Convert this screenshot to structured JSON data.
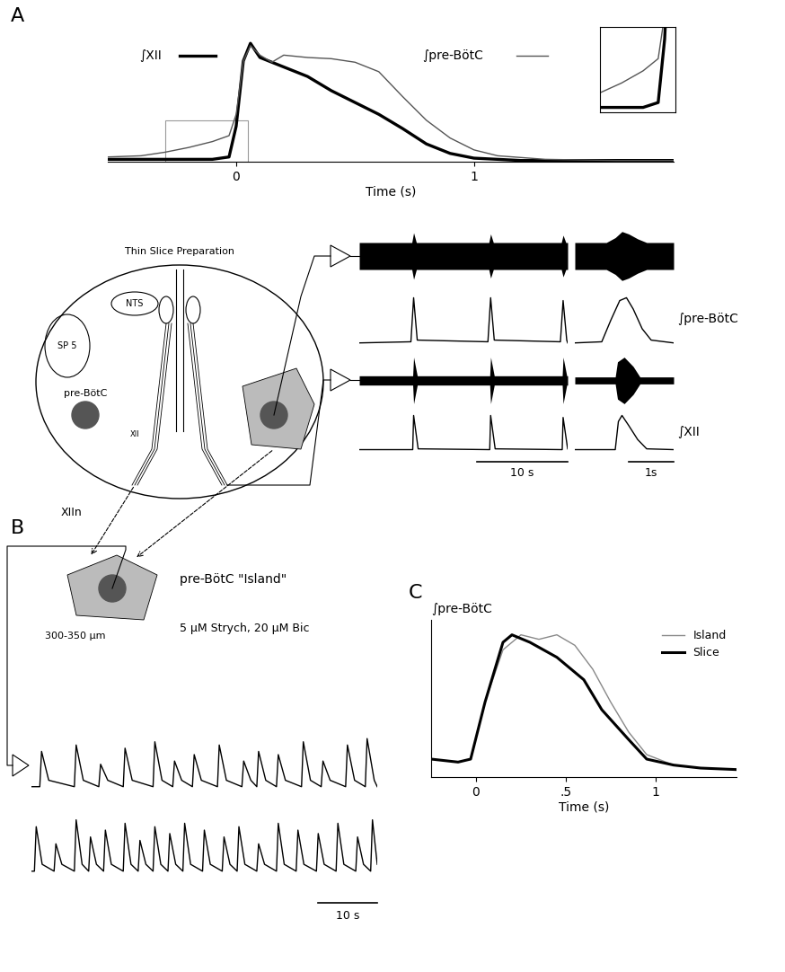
{
  "panels": [
    "A",
    "B",
    "C"
  ],
  "diagram": {
    "title": "Thin Slice Preparation",
    "labels": [
      "NTS",
      "SP 5",
      "pre-BötC",
      "XII",
      "XIIn"
    ],
    "island": {
      "title": "pre-BötC \"Island\"",
      "thickness": "300-350 µm",
      "drugs": "5 µM Strych, 20 µM Bic"
    }
  },
  "chart_data": [
    {
      "type": "line",
      "xlabel": "Time (s)",
      "xlim": [
        -0.54,
        1.84
      ],
      "xticks": [
        0,
        1
      ],
      "ylim": [
        0,
        1.1
      ],
      "tick_labels": "x",
      "series": [
        {
          "name": "∫XII",
          "color": "#000000",
          "line_style": "solid",
          "x": [
            -0.54,
            -0.3,
            -0.1,
            -0.03,
            0.0,
            0.03,
            0.06,
            0.1,
            0.2,
            0.3,
            0.4,
            0.5,
            0.6,
            0.7,
            0.8,
            0.9,
            1.0,
            1.2,
            1.5,
            1.84
          ],
          "values": [
            0.02,
            0.02,
            0.02,
            0.04,
            0.3,
            0.85,
            1.0,
            0.88,
            0.8,
            0.72,
            0.6,
            0.5,
            0.4,
            0.28,
            0.15,
            0.07,
            0.03,
            0.01,
            0.01,
            0.01
          ]
        },
        {
          "name": "∫pre-BötC",
          "color": "#555555",
          "line_style": "solid",
          "x": [
            -0.54,
            -0.4,
            -0.3,
            -0.2,
            -0.1,
            -0.03,
            0.0,
            0.03,
            0.06,
            0.1,
            0.15,
            0.2,
            0.3,
            0.4,
            0.5,
            0.6,
            0.7,
            0.8,
            0.9,
            1.0,
            1.1,
            1.3,
            1.6,
            1.84
          ],
          "values": [
            0.04,
            0.05,
            0.08,
            0.12,
            0.17,
            0.22,
            0.4,
            0.85,
            0.98,
            0.9,
            0.84,
            0.9,
            0.88,
            0.87,
            0.84,
            0.76,
            0.55,
            0.35,
            0.2,
            0.1,
            0.05,
            0.02,
            0.01,
            0.01
          ]
        }
      ],
      "inset": {
        "xlim": [
          -0.3,
          0.05
        ],
        "ylim": [
          0,
          0.35
        ]
      }
    },
    {
      "type": "trace",
      "tick_labels": false,
      "windows": [
        {
          "xlim": [
            0,
            23
          ],
          "scale_bar": {
            "value": 10,
            "label": "10 s"
          }
        },
        {
          "xlim": [
            0,
            2.2
          ],
          "scale_bar": {
            "value": 1,
            "label": "1s"
          }
        }
      ],
      "series": [
        {
          "type": "raw",
          "color": "#000000",
          "ylim": [
            -1.1,
            1.1
          ],
          "windows": [
            {
              "x": [
                0,
                5.8,
                6.0,
                6.3,
                14.3,
                14.5,
                14.8,
                22.3,
                22.5,
                22.8,
                23
              ],
              "values": [
                0.55,
                0.55,
                0.95,
                0.55,
                0.55,
                0.9,
                0.55,
                0.55,
                0.85,
                0.55,
                0.55
              ]
            },
            {
              "x": [
                0,
                0.7,
                0.9,
                1.05,
                1.2,
                1.4,
                1.6,
                2.2
              ],
              "values": [
                0.55,
                0.55,
                0.75,
                1.0,
                0.9,
                0.7,
                0.55,
                0.55
              ]
            }
          ]
        },
        {
          "type": "integrated",
          "name": "∫pre-BötC",
          "color": "#000000",
          "ylim": [
            0,
            1.05
          ],
          "windows": [
            {
              "x": [
                0,
                5.7,
                6.0,
                6.4,
                14.2,
                14.5,
                14.9,
                22.2,
                22.5,
                22.9,
                23
              ],
              "values": [
                0.1,
                0.12,
                0.9,
                0.15,
                0.12,
                0.9,
                0.15,
                0.12,
                0.85,
                0.15,
                0.1
              ]
            },
            {
              "x": [
                0,
                0.6,
                0.8,
                1.0,
                1.15,
                1.3,
                1.5,
                1.7,
                2.2
              ],
              "values": [
                0.1,
                0.12,
                0.5,
                0.85,
                0.9,
                0.7,
                0.35,
                0.15,
                0.1
              ]
            }
          ]
        },
        {
          "type": "raw",
          "color": "#000000",
          "ylim": [
            -1.1,
            1.1
          ],
          "windows": [
            {
              "x": [
                0,
                5.9,
                6.0,
                6.4,
                14.4,
                14.5,
                14.9,
                22.4,
                22.5,
                22.9,
                23
              ],
              "values": [
                0.2,
                0.2,
                1.0,
                0.2,
                0.2,
                1.0,
                0.2,
                0.2,
                1.0,
                0.2,
                0.2
              ]
            },
            {
              "x": [
                0,
                0.9,
                0.95,
                1.1,
                1.3,
                1.45,
                2.2
              ],
              "values": [
                0.15,
                0.15,
                0.8,
                1.0,
                0.6,
                0.15,
                0.15
              ]
            }
          ]
        },
        {
          "type": "integrated",
          "name": "∫XII",
          "color": "#000000",
          "ylim": [
            0,
            1.05
          ],
          "windows": [
            {
              "x": [
                0,
                5.9,
                6.0,
                6.5,
                14.4,
                14.5,
                15.0,
                22.4,
                22.5,
                23
              ],
              "values": [
                0.1,
                0.1,
                0.95,
                0.12,
                0.1,
                0.95,
                0.12,
                0.1,
                0.9,
                0.12
              ]
            },
            {
              "x": [
                0,
                0.9,
                0.97,
                1.05,
                1.2,
                1.4,
                1.6,
                2.2
              ],
              "values": [
                0.1,
                0.1,
                0.8,
                0.95,
                0.7,
                0.35,
                0.12,
                0.1
              ]
            }
          ]
        }
      ]
    },
    {
      "type": "line",
      "tick_labels": false,
      "xlim": [
        0,
        58
      ],
      "ylim": [
        0,
        1.05
      ],
      "series": [
        {
          "color": "#000000",
          "line_style": "solid",
          "x": [
            0,
            1.4,
            1.7,
            2.9,
            7.2,
            7.5,
            8.7,
            11.3,
            11.6,
            12.8,
            15.4,
            15.7,
            16.9,
            20.4,
            20.7,
            21.9,
            23.7,
            24.0,
            25.2,
            27.0,
            27.3,
            28.5,
            31.2,
            31.5,
            32.7,
            35.3,
            35.6,
            36.8,
            37.8,
            38.1,
            39.3,
            41.1,
            41.4,
            42.6,
            45.3,
            45.6,
            46.8,
            48.6,
            48.9,
            50.1,
            52.7,
            53.0,
            54.2,
            56.0,
            56.3,
            57.5,
            58
          ],
          "values": [
            0.2,
            0.2,
            0.75,
            0.3,
            0.2,
            0.85,
            0.3,
            0.2,
            0.55,
            0.3,
            0.2,
            0.8,
            0.3,
            0.2,
            0.9,
            0.3,
            0.2,
            0.6,
            0.3,
            0.2,
            0.7,
            0.3,
            0.2,
            0.85,
            0.3,
            0.2,
            0.6,
            0.3,
            0.2,
            0.75,
            0.3,
            0.2,
            0.7,
            0.3,
            0.2,
            0.9,
            0.3,
            0.2,
            0.6,
            0.3,
            0.2,
            0.85,
            0.3,
            0.2,
            0.95,
            0.3,
            0.2
          ]
        }
      ]
    },
    {
      "type": "line",
      "tick_labels": false,
      "xlim": [
        0,
        58
      ],
      "ylim": [
        0,
        1.05
      ],
      "scale_bar": {
        "value": 10,
        "label": "10 s"
      },
      "series": [
        {
          "color": "#000000",
          "line_style": "solid",
          "x": [
            0,
            0.5,
            0.8,
            1.8,
            3.8,
            4.1,
            5.1,
            7.2,
            7.5,
            8.5,
            9.6,
            9.9,
            10.9,
            12.1,
            12.4,
            13.4,
            15.4,
            15.7,
            16.7,
            17.9,
            18.2,
            19.2,
            20.4,
            20.7,
            21.7,
            22.9,
            23.2,
            24.2,
            25.4,
            25.7,
            26.7,
            28.7,
            29.0,
            30.0,
            32.0,
            32.3,
            33.3,
            34.5,
            34.8,
            35.8,
            37.8,
            38.1,
            39.1,
            41.1,
            41.4,
            42.4,
            44.4,
            44.7,
            45.7,
            47.8,
            48.1,
            49.1,
            51.1,
            51.4,
            52.4,
            54.4,
            54.7,
            55.7,
            56.9,
            57.2,
            58.0
          ],
          "values": [
            0.2,
            0.2,
            0.85,
            0.3,
            0.2,
            0.6,
            0.3,
            0.2,
            0.95,
            0.3,
            0.2,
            0.7,
            0.3,
            0.2,
            0.8,
            0.3,
            0.2,
            0.9,
            0.3,
            0.2,
            0.65,
            0.3,
            0.2,
            0.85,
            0.3,
            0.2,
            0.75,
            0.3,
            0.2,
            0.9,
            0.3,
            0.2,
            0.8,
            0.3,
            0.2,
            0.7,
            0.3,
            0.2,
            0.85,
            0.3,
            0.2,
            0.6,
            0.3,
            0.2,
            0.9,
            0.3,
            0.2,
            0.8,
            0.3,
            0.2,
            0.75,
            0.3,
            0.2,
            0.9,
            0.3,
            0.2,
            0.7,
            0.3,
            0.2,
            0.95,
            0.3
          ]
        }
      ]
    },
    {
      "type": "line",
      "ylabel": "∫pre-BötC",
      "xlabel": "Time (s)",
      "xlim": [
        -0.25,
        1.45
      ],
      "ylim": [
        0,
        1.05
      ],
      "xticks": [
        0,
        {
          "value": 0.5,
          "label": ".5"
        },
        1
      ],
      "tick_labels": "x",
      "legend": "upper right",
      "series": [
        {
          "name": "Island",
          "color": "#888888",
          "line_style": "solid",
          "x": [
            -0.25,
            -0.1,
            -0.03,
            0.05,
            0.15,
            0.25,
            0.35,
            0.45,
            0.55,
            0.65,
            0.75,
            0.85,
            0.95,
            1.1,
            1.25,
            1.45
          ],
          "values": [
            0.12,
            0.1,
            0.12,
            0.5,
            0.85,
            0.95,
            0.92,
            0.95,
            0.88,
            0.72,
            0.5,
            0.3,
            0.15,
            0.08,
            0.06,
            0.05
          ]
        },
        {
          "name": "Slice",
          "color": "#000000",
          "line_style": "solid",
          "x": [
            -0.25,
            -0.1,
            -0.03,
            0.05,
            0.15,
            0.2,
            0.3,
            0.45,
            0.6,
            0.7,
            0.85,
            0.95,
            1.1,
            1.25,
            1.45
          ],
          "values": [
            0.12,
            0.1,
            0.12,
            0.5,
            0.9,
            0.95,
            0.9,
            0.8,
            0.65,
            0.45,
            0.25,
            0.12,
            0.08,
            0.06,
            0.05
          ]
        }
      ]
    }
  ]
}
